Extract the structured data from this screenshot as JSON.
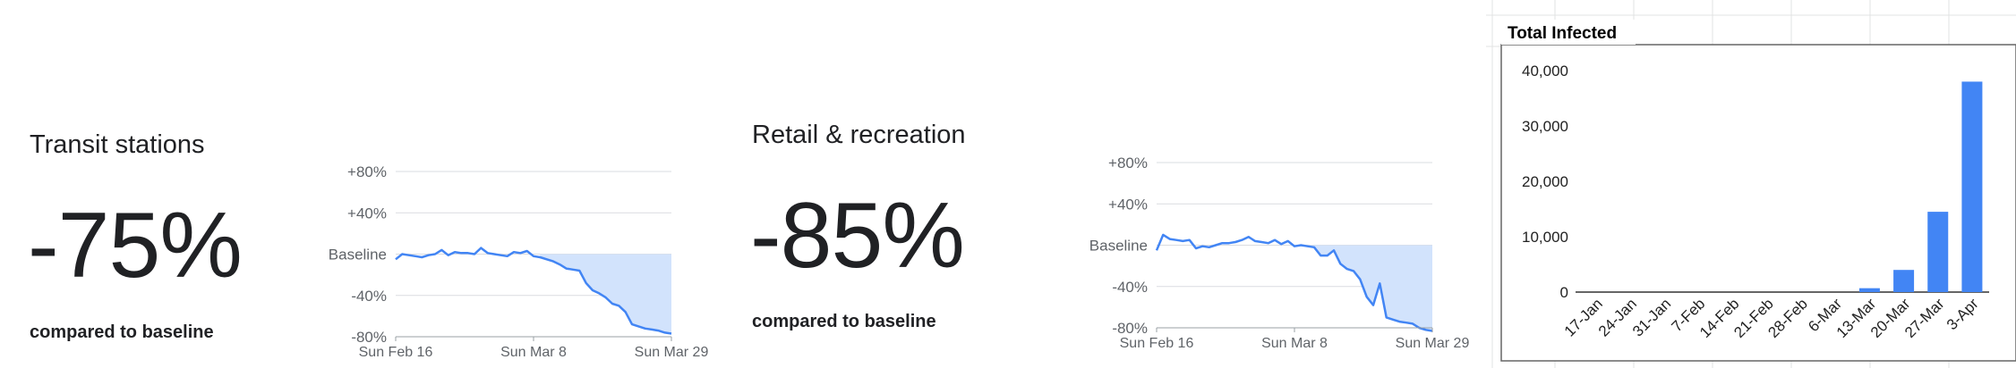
{
  "mobility": [
    {
      "title": "Transit stations",
      "value": "-75%",
      "compared": "compared to baseline"
    },
    {
      "title": "Retail & recreation",
      "value": "-85%",
      "compared": "compared to baseline"
    }
  ],
  "chart_data": [
    {
      "type": "area",
      "title": "",
      "y_ticks": [
        "+80%",
        "+40%",
        "Baseline",
        "-40%",
        "-80%"
      ],
      "ylim": [
        -80,
        80
      ],
      "x_ticks": [
        "Sun Feb 16",
        "Sun Mar 8",
        "Sun Mar 29"
      ],
      "xlim": [
        0,
        42
      ],
      "grid": true,
      "colors": {
        "line": "#4285f4",
        "fill": "#d2e3fc"
      },
      "values": [
        -5,
        0,
        -1,
        -2,
        -3,
        -1,
        0,
        4,
        -1,
        2,
        1,
        1,
        0,
        6,
        1,
        0,
        -1,
        -2,
        2,
        1,
        3,
        -2,
        -3,
        -5,
        -7,
        -10,
        -14,
        -15,
        -16,
        -28,
        -35,
        -38,
        -42,
        -48,
        -50,
        -56,
        -68,
        -70,
        -72,
        -73,
        -74,
        -76,
        -77
      ]
    },
    {
      "type": "area",
      "title": "",
      "y_ticks": [
        "+80%",
        "+40%",
        "Baseline",
        "-40%",
        "-80%"
      ],
      "ylim": [
        -80,
        80
      ],
      "x_ticks": [
        "Sun Feb 16",
        "Sun Mar 8",
        "Sun Mar 29"
      ],
      "xlim": [
        0,
        42
      ],
      "grid": true,
      "colors": {
        "line": "#4285f4",
        "fill": "#d2e3fc"
      },
      "values": [
        -5,
        10,
        6,
        5,
        4,
        5,
        -3,
        -1,
        -2,
        0,
        2,
        2,
        3,
        5,
        8,
        4,
        3,
        2,
        5,
        1,
        4,
        -1,
        0,
        -1,
        -2,
        -10,
        -10,
        -5,
        -18,
        -23,
        -25,
        -33,
        -50,
        -58,
        -37,
        -70,
        -72,
        -74,
        -75,
        -76,
        -80,
        -82,
        -83
      ]
    },
    {
      "type": "bar",
      "title": "Total Infected",
      "categories": [
        "17-Jan",
        "24-Jan",
        "31-Jan",
        "7-Feb",
        "14-Feb",
        "21-Feb",
        "28-Feb",
        "6-Mar",
        "13-Mar",
        "20-Mar",
        "27-Mar",
        "3-Apr"
      ],
      "values": [
        0,
        0,
        0,
        0,
        0,
        0,
        0,
        0,
        700,
        4000,
        14500,
        38000
      ],
      "y_ticks": [
        "0",
        "10,000",
        "20,000",
        "30,000",
        "40,000"
      ],
      "ylim": [
        0,
        40000
      ],
      "grid": false,
      "colors": {
        "bar": "#4285f4"
      }
    }
  ]
}
